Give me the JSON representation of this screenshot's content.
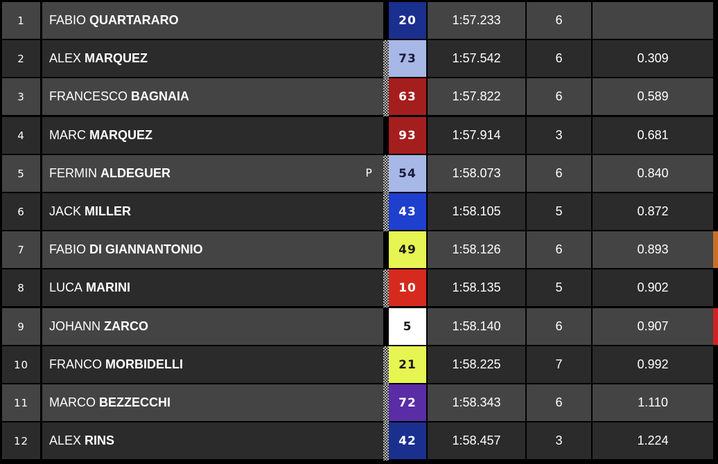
{
  "colors": {
    "row_light": "#444444",
    "row_dark": "#2b2b2b",
    "highlight_orange": "#c7702a",
    "highlight_red": "#d02222"
  },
  "rows": [
    {
      "position": "1",
      "first_name": "FABIO",
      "last_name": "QUARTARARO",
      "number": "20",
      "number_bg": "#1b2f8f",
      "number_fg": "#ffffff",
      "lap_time": "1:57.233",
      "laps": "6",
      "gap": "",
      "checkered": false,
      "flag": "",
      "edge": ""
    },
    {
      "position": "2",
      "first_name": "ALEX",
      "last_name": "MARQUEZ",
      "number": "73",
      "number_bg": "#a7b7e6",
      "number_fg": "#1a1a3a",
      "lap_time": "1:57.542",
      "laps": "6",
      "gap": "0.309",
      "checkered": true,
      "flag": "",
      "edge": ""
    },
    {
      "position": "3",
      "first_name": "FRANCESCO",
      "last_name": "BAGNAIA",
      "number": "63",
      "number_bg": "#a51e1e",
      "number_fg": "#ffffff",
      "lap_time": "1:57.822",
      "laps": "6",
      "gap": "0.589",
      "checkered": true,
      "flag": "",
      "edge": ""
    },
    {
      "position": "4",
      "first_name": "MARC",
      "last_name": "MARQUEZ",
      "number": "93",
      "number_bg": "#a51e1e",
      "number_fg": "#ffffff",
      "lap_time": "1:57.914",
      "laps": "3",
      "gap": "0.681",
      "checkered": false,
      "flag": "",
      "edge": ""
    },
    {
      "position": "5",
      "first_name": "FERMIN",
      "last_name": "ALDEGUER",
      "number": "54",
      "number_bg": "#a7b7e6",
      "number_fg": "#1a1a3a",
      "lap_time": "1:58.073",
      "laps": "6",
      "gap": "0.840",
      "checkered": true,
      "flag": "P",
      "edge": ""
    },
    {
      "position": "6",
      "first_name": "JACK",
      "last_name": "MILLER",
      "number": "43",
      "number_bg": "#1f3fcf",
      "number_fg": "#ffffff",
      "lap_time": "1:58.105",
      "laps": "5",
      "gap": "0.872",
      "checkered": true,
      "flag": "",
      "edge": ""
    },
    {
      "position": "7",
      "first_name": "FABIO",
      "last_name": "DI GIANNANTONIO",
      "number": "49",
      "number_bg": "#e7f552",
      "number_fg": "#1a1a1a",
      "lap_time": "1:58.126",
      "laps": "6",
      "gap": "0.893",
      "checkered": false,
      "flag": "",
      "edge": "#c7702a"
    },
    {
      "position": "8",
      "first_name": "LUCA",
      "last_name": "MARINI",
      "number": "10",
      "number_bg": "#d62a1e",
      "number_fg": "#ffffff",
      "lap_time": "1:58.135",
      "laps": "5",
      "gap": "0.902",
      "checkered": true,
      "flag": "",
      "edge": ""
    },
    {
      "position": "9",
      "first_name": "JOHANN",
      "last_name": "ZARCO",
      "number": "5",
      "number_bg": "#ffffff",
      "number_fg": "#1a1a1a",
      "lap_time": "1:58.140",
      "laps": "6",
      "gap": "0.907",
      "checkered": false,
      "flag": "",
      "edge": "#d02222"
    },
    {
      "position": "10",
      "first_name": "FRANCO",
      "last_name": "MORBIDELLI",
      "number": "21",
      "number_bg": "#e7f552",
      "number_fg": "#1a1a1a",
      "lap_time": "1:58.225",
      "laps": "7",
      "gap": "0.992",
      "checkered": true,
      "flag": "",
      "edge": ""
    },
    {
      "position": "11",
      "first_name": "MARCO",
      "last_name": "BEZZECCHI",
      "number": "72",
      "number_bg": "#5a2ca6",
      "number_fg": "#ffffff",
      "lap_time": "1:58.343",
      "laps": "6",
      "gap": "1.110",
      "checkered": true,
      "flag": "",
      "edge": ""
    },
    {
      "position": "12",
      "first_name": "ALEX",
      "last_name": "RINS",
      "number": "42",
      "number_bg": "#1b2f8f",
      "number_fg": "#ffffff",
      "lap_time": "1:58.457",
      "laps": "3",
      "gap": "1.224",
      "checkered": true,
      "flag": "",
      "edge": ""
    }
  ]
}
